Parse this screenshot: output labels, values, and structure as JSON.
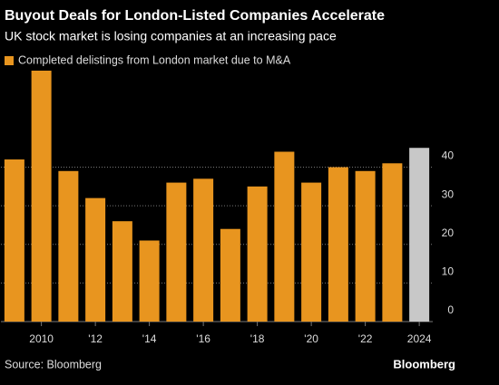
{
  "chart_data": {
    "type": "bar",
    "title": "Buyout Deals for London-Listed Companies Accelerate",
    "subtitle": "UK stock market is losing companies at an increasing pace",
    "categories": [
      null,
      "2010",
      null,
      "'12",
      null,
      "'14",
      null,
      "'16",
      null,
      "'18",
      null,
      "'20",
      null,
      "'22",
      null,
      "2024"
    ],
    "series": [
      {
        "name": "Completed delistings from London market due to M&A",
        "color": "#e8951f",
        "values": [
          42,
          65,
          39,
          32,
          26,
          21,
          36,
          37,
          24,
          35,
          44,
          36,
          40,
          39,
          41,
          45
        ]
      }
    ],
    "colors": [
      "#e8951f",
      "#e8951f",
      "#e8951f",
      "#e8951f",
      "#e8951f",
      "#e8951f",
      "#e8951f",
      "#e8951f",
      "#e8951f",
      "#e8951f",
      "#e8951f",
      "#e8951f",
      "#e8951f",
      "#e8951f",
      "#e8951f",
      "#c8c8c8"
    ],
    "ylim": [
      0,
      65
    ],
    "yticks": [
      0,
      10,
      20,
      30,
      40
    ],
    "grid": true,
    "source": "Source: Bloomberg",
    "brand": "Bloomberg"
  }
}
